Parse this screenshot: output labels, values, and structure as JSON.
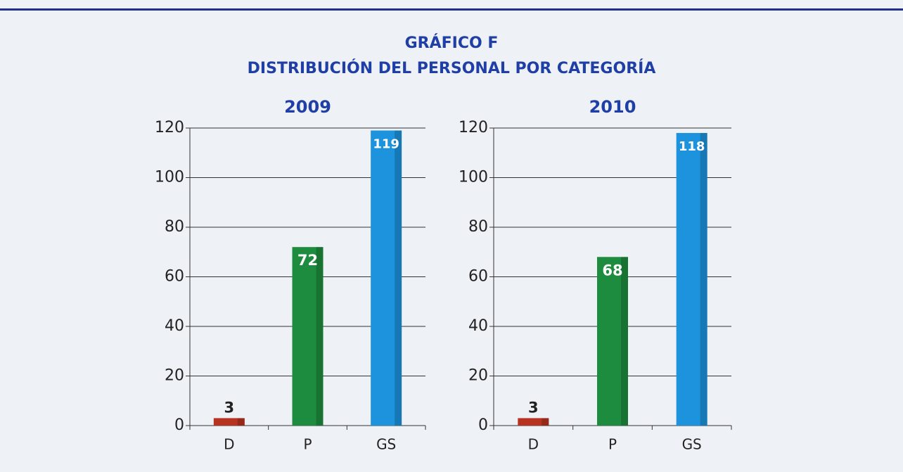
{
  "title": [
    "GRÁFICO F",
    "DISTRIBUCIÓN DEL PERSONAL POR CATEGORÍA"
  ],
  "chart_data": [
    {
      "type": "bar",
      "title": "2009",
      "categories": [
        "D",
        "P",
        "GS"
      ],
      "values": [
        3,
        72,
        119
      ],
      "colors": [
        "#b83220",
        "#1e8c3e",
        "#1c93dc"
      ],
      "ylim": [
        0,
        120
      ],
      "yticks": [
        0,
        20,
        40,
        60,
        80,
        100,
        120
      ],
      "grid": true
    },
    {
      "type": "bar",
      "title": "2010",
      "categories": [
        "D",
        "P",
        "GS"
      ],
      "values": [
        3,
        68,
        118
      ],
      "colors": [
        "#b83220",
        "#1e8c3e",
        "#1c93dc"
      ],
      "ylim": [
        0,
        120
      ],
      "yticks": [
        0,
        20,
        40,
        60,
        80,
        100,
        120
      ],
      "grid": true
    }
  ]
}
